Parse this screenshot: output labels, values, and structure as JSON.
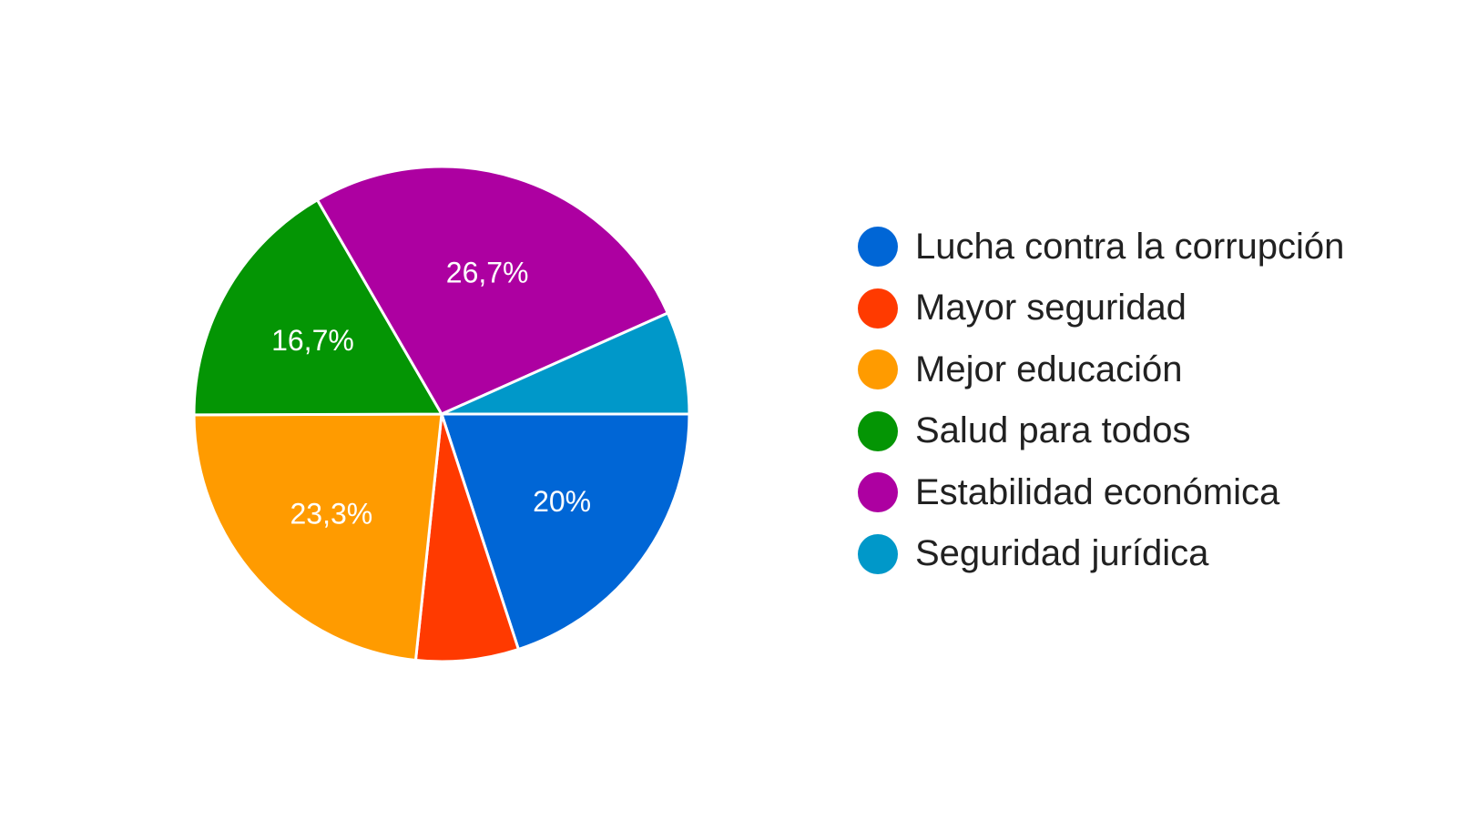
{
  "chart_data": {
    "type": "pie",
    "categories": [
      "Lucha contra la corrupción",
      "Mayor seguridad",
      "Mejor educación",
      "Salud para todos",
      "Estabilidad económica",
      "Seguridad jurídica"
    ],
    "values": [
      20,
      6.7,
      23.3,
      16.7,
      26.7,
      6.7
    ],
    "data_labels": [
      "20%",
      "",
      "23,3%",
      "16,7%",
      "26,7%",
      ""
    ],
    "colors": [
      "#0066d6",
      "#ff3a00",
      "#ff9b00",
      "#049504",
      "#ad00a1",
      "#0098c9"
    ],
    "start_angle_deg": 90,
    "direction": "clockwise",
    "legend_position": "right",
    "title": ""
  }
}
